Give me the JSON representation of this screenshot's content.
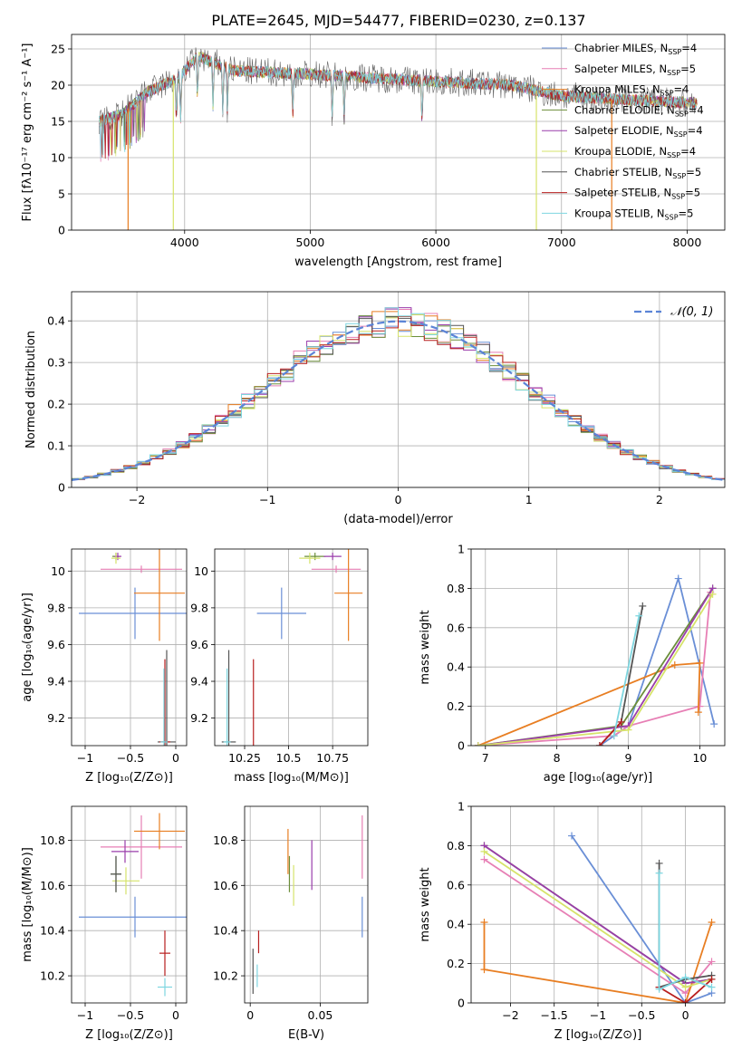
{
  "figure": {
    "title": "PLATE=2645, MJD=54477, FIBERID=0230, z=0.137",
    "legend_entries": [
      {
        "label": "Chabrier MILES, N",
        "sub": "SSP",
        "tail": "=4",
        "color": "#6a8fd6"
      },
      {
        "label": "Salpeter MILES, N",
        "sub": "SSP",
        "tail": "=5",
        "color": "#e77fb5"
      },
      {
        "label": "Kroupa MILES, N",
        "sub": "SSP",
        "tail": "=4",
        "color": "#e87e22"
      },
      {
        "label": "Chabrier ELODIE, N",
        "sub": "SSP",
        "tail": "=4",
        "color": "#6b8e3a"
      },
      {
        "label": "Salpeter ELODIE, N",
        "sub": "SSP",
        "tail": "=4",
        "color": "#9a3dab"
      },
      {
        "label": "Kroupa ELODIE, N",
        "sub": "SSP",
        "tail": "=4",
        "color": "#d6e36a"
      },
      {
        "label": "Chabrier STELIB, N",
        "sub": "SSP",
        "tail": "=5",
        "color": "#555555"
      },
      {
        "label": "Salpeter STELIB, N",
        "sub": "SSP",
        "tail": "=5",
        "color": "#b81f1f"
      },
      {
        "label": "Kroupa STELIB, N",
        "sub": "SSP",
        "tail": "=5",
        "color": "#7dd6e0"
      }
    ],
    "normal_legend": "𝒩(0, 1)"
  },
  "chart_data": [
    {
      "id": "spectrum",
      "type": "line",
      "xlabel": "wavelength [Angstrom, rest frame]",
      "ylabel": "Flux [fλ10⁻¹⁷ erg cm⁻² s⁻¹ A⁻¹]",
      "xlim": [
        3100,
        8300
      ],
      "ylim": [
        0,
        27
      ],
      "xticks": [
        4000,
        5000,
        6000,
        7000,
        8000
      ],
      "yticks": [
        0,
        5,
        10,
        15,
        20,
        25
      ],
      "x_range": [
        3320,
        8080
      ],
      "continuum": {
        "x": [
          3320,
          3500,
          3700,
          3950,
          4100,
          4400,
          5000,
          6000,
          6600,
          7000,
          7500,
          8080
        ],
        "y": [
          15,
          16,
          19,
          21,
          24,
          22,
          21.5,
          20.5,
          20,
          18.5,
          18,
          17.5
        ]
      },
      "dips": [
        {
          "x": 3550,
          "to": 0,
          "series": "Kroupa MILES"
        },
        {
          "x": 3910,
          "to": 0,
          "series": "Kroupa ELODIE"
        },
        {
          "x": 6800,
          "to": 0,
          "series": "Kroupa ELODIE"
        },
        {
          "x": 7400,
          "to": 0,
          "series": "Kroupa MILES"
        }
      ]
    },
    {
      "id": "residuals",
      "type": "step",
      "xlabel": "(data-model)/error",
      "ylabel": "Normed distribution",
      "xlim": [
        -2.5,
        2.5
      ],
      "ylim": [
        0,
        0.47
      ],
      "xticks": [
        -2,
        -1,
        0,
        1,
        2
      ],
      "yticks": [
        0.0,
        0.1,
        0.2,
        0.3,
        0.4
      ],
      "bin_width": 0.1,
      "normal": {
        "mu": 0,
        "sigma": 1
      }
    },
    {
      "id": "age_vs_Z",
      "type": "errorbar",
      "xlabel": "Z [log₁₀(Z/Z⊙)]",
      "ylabel": "age  [log₁₀(age/yr)]",
      "xlim": [
        -1.15,
        0.12
      ],
      "ylim": [
        9.05,
        10.12
      ],
      "xticks": [
        -1.0,
        -0.5,
        0.0
      ],
      "yticks": [
        9.2,
        9.4,
        9.6,
        9.8,
        10.0
      ],
      "points": [
        {
          "x": -0.45,
          "xe": 0.62,
          "y": 9.77,
          "ye": 0.14,
          "c": "#6a8fd6"
        },
        {
          "x": -0.38,
          "xe": 0.45,
          "y": 10.01,
          "ye": 0.0,
          "c": "#e77fb5"
        },
        {
          "x": -0.18,
          "xe": 0.28,
          "y": 9.88,
          "ye": 0.26,
          "c": "#e87e22"
        },
        {
          "x": -0.66,
          "xe": 0.04,
          "y": 10.08,
          "ye": 0.02,
          "c": "#6b8e3a"
        },
        {
          "x": -0.64,
          "xe": 0.04,
          "y": 10.08,
          "ye": 0.02,
          "c": "#9a3dab"
        },
        {
          "x": -0.66,
          "xe": 0.05,
          "y": 10.07,
          "ye": 0.03,
          "c": "#d6e36a"
        },
        {
          "x": -0.1,
          "xe": 0.1,
          "y": 9.07,
          "ye": 0.5,
          "c": "#555555"
        },
        {
          "x": -0.12,
          "xe": 0.06,
          "y": 9.07,
          "ye": 0.45,
          "c": "#b81f1f"
        },
        {
          "x": -0.13,
          "xe": 0.04,
          "y": 9.07,
          "ye": 0.4,
          "c": "#7dd6e0"
        }
      ]
    },
    {
      "id": "age_vs_mass",
      "type": "errorbar",
      "xlabel": "mass [log₁₀(M/M⊙)]",
      "ylabel": "",
      "xlim": [
        10.08,
        10.95
      ],
      "ylim": [
        9.05,
        10.12
      ],
      "xticks": [
        10.25,
        10.5,
        10.75
      ],
      "yticks": [
        9.2,
        9.4,
        9.6,
        9.8,
        10.0
      ],
      "points": [
        {
          "x": 10.46,
          "xe": 0.14,
          "y": 9.77,
          "ye": 0.14,
          "c": "#6a8fd6"
        },
        {
          "x": 10.77,
          "xe": 0.14,
          "y": 10.01,
          "ye": 0.0,
          "c": "#e77fb5"
        },
        {
          "x": 10.84,
          "xe": 0.08,
          "y": 9.88,
          "ye": 0.26,
          "c": "#e87e22"
        },
        {
          "x": 10.65,
          "xe": 0.06,
          "y": 10.08,
          "ye": 0.02,
          "c": "#6b8e3a"
        },
        {
          "x": 10.75,
          "xe": 0.05,
          "y": 10.08,
          "ye": 0.02,
          "c": "#9a3dab"
        },
        {
          "x": 10.62,
          "xe": 0.06,
          "y": 10.07,
          "ye": 0.03,
          "c": "#d6e36a"
        },
        {
          "x": 10.16,
          "xe": 0.04,
          "y": 9.07,
          "ye": 0.5,
          "c": "#555555"
        },
        {
          "x": 10.3,
          "xe": 0.0,
          "y": 9.07,
          "ye": 0.45,
          "c": "#b81f1f"
        },
        {
          "x": 10.15,
          "xe": 0.02,
          "y": 9.07,
          "ye": 0.4,
          "c": "#7dd6e0"
        }
      ]
    },
    {
      "id": "weight_vs_age",
      "type": "line",
      "xlabel": "age  [log₁₀(age/yr)]",
      "ylabel": "mass weight",
      "xlim": [
        6.8,
        10.35
      ],
      "ylim": [
        0,
        1.0
      ],
      "xticks": [
        7,
        8,
        9,
        10
      ],
      "yticks": [
        0.0,
        0.2,
        0.4,
        0.6,
        0.8,
        1.0
      ],
      "series": [
        {
          "c": "#6a8fd6",
          "x": [
            8.6,
            9.0,
            9.7,
            10.2
          ],
          "y": [
            0.0,
            0.1,
            0.85,
            0.11
          ]
        },
        {
          "c": "#e77fb5",
          "x": [
            6.9,
            8.8,
            9.0,
            10.0,
            10.15
          ],
          "y": [
            0.0,
            0.05,
            0.1,
            0.2,
            0.78
          ]
        },
        {
          "c": "#e87e22",
          "x": [
            6.9,
            9.65,
            10.0,
            9.98
          ],
          "y": [
            0.0,
            0.41,
            0.42,
            0.17
          ]
        },
        {
          "c": "#6b8e3a",
          "x": [
            6.9,
            8.9,
            10.18
          ],
          "y": [
            0.0,
            0.1,
            0.8
          ]
        },
        {
          "c": "#9a3dab",
          "x": [
            6.9,
            9.0,
            10.18
          ],
          "y": [
            0.0,
            0.1,
            0.8
          ]
        },
        {
          "c": "#d6e36a",
          "x": [
            6.9,
            9.0,
            10.18
          ],
          "y": [
            0.0,
            0.08,
            0.77
          ]
        },
        {
          "c": "#555555",
          "x": [
            8.6,
            8.9,
            9.2
          ],
          "y": [
            0.0,
            0.12,
            0.71
          ]
        },
        {
          "c": "#b81f1f",
          "x": [
            8.6,
            8.9
          ],
          "y": [
            0.0,
            0.12
          ]
        },
        {
          "c": "#7dd6e0",
          "x": [
            8.8,
            9.15
          ],
          "y": [
            0.05,
            0.66
          ]
        }
      ]
    },
    {
      "id": "mass_vs_Z",
      "type": "errorbar",
      "xlabel": "Z [log₁₀(Z/Z⊙)]",
      "ylabel": "mass [log₁₀(M/M⊙)]",
      "xlim": [
        -1.15,
        0.12
      ],
      "ylim": [
        10.08,
        10.95
      ],
      "xticks": [
        -1.0,
        -0.5,
        0.0
      ],
      "yticks": [
        10.2,
        10.4,
        10.6,
        10.8
      ],
      "points": [
        {
          "x": -0.45,
          "xe": 0.62,
          "y": 10.46,
          "ye": 0.09,
          "c": "#6a8fd6"
        },
        {
          "x": -0.38,
          "xe": 0.45,
          "y": 10.77,
          "ye": 0.14,
          "c": "#e77fb5"
        },
        {
          "x": -0.18,
          "xe": 0.28,
          "y": 10.84,
          "ye": 0.08,
          "c": "#e87e22"
        },
        {
          "x": -0.66,
          "xe": 0.06,
          "y": 10.65,
          "ye": 0.08,
          "c": "#6b8e3a"
        },
        {
          "x": -0.56,
          "xe": 0.15,
          "y": 10.75,
          "ye": 0.05,
          "c": "#9a3dab"
        },
        {
          "x": -0.55,
          "xe": 0.15,
          "y": 10.62,
          "ye": 0.06,
          "c": "#d6e36a"
        },
        {
          "x": -0.66,
          "xe": 0.06,
          "y": 10.65,
          "ye": 0.08,
          "c": "#555555"
        },
        {
          "x": -0.12,
          "xe": 0.06,
          "y": 10.3,
          "ye": 0.1,
          "c": "#b81f1f"
        },
        {
          "x": -0.12,
          "xe": 0.08,
          "y": 10.15,
          "ye": 0.04,
          "c": "#7dd6e0"
        }
      ]
    },
    {
      "id": "mass_vs_EBV",
      "type": "errorbar",
      "xlabel": "E(B-V)",
      "ylabel": "",
      "xlim": [
        -0.004,
        0.084
      ],
      "ylim": [
        10.08,
        10.95
      ],
      "xticks": [
        0.0,
        0.05
      ],
      "yticks": [
        10.2,
        10.4,
        10.6,
        10.8
      ],
      "points": [
        {
          "x": 0.08,
          "xe": 0,
          "y": 10.46,
          "ye": 0.09,
          "c": "#6a8fd6"
        },
        {
          "x": 0.08,
          "xe": 0,
          "y": 10.77,
          "ye": 0.14,
          "c": "#e77fb5"
        },
        {
          "x": 0.027,
          "xe": 0,
          "y": 10.75,
          "ye": 0.1,
          "c": "#e87e22"
        },
        {
          "x": 0.028,
          "xe": 0,
          "y": 10.65,
          "ye": 0.08,
          "c": "#6b8e3a"
        },
        {
          "x": 0.044,
          "xe": 0,
          "y": 10.69,
          "ye": 0.11,
          "c": "#9a3dab"
        },
        {
          "x": 0.031,
          "xe": 0,
          "y": 10.6,
          "ye": 0.09,
          "c": "#d6e36a"
        },
        {
          "x": 0.002,
          "xe": 0,
          "y": 10.22,
          "ye": 0.1,
          "c": "#555555"
        },
        {
          "x": 0.006,
          "xe": 0,
          "y": 10.35,
          "ye": 0.05,
          "c": "#b81f1f"
        },
        {
          "x": 0.005,
          "xe": 0,
          "y": 10.2,
          "ye": 0.05,
          "c": "#7dd6e0"
        }
      ]
    },
    {
      "id": "weight_vs_Z",
      "type": "line",
      "xlabel": "Z [log₁₀(Z/Z⊙)]",
      "ylabel": "mass weight",
      "xlim": [
        -2.45,
        0.45
      ],
      "ylim": [
        0,
        1.0
      ],
      "xticks": [
        -2.0,
        -1.5,
        -1.0,
        -0.5,
        0.0
      ],
      "yticks": [
        0.0,
        0.2,
        0.4,
        0.6,
        0.8,
        1.0
      ],
      "series": [
        {
          "c": "#6a8fd6",
          "x": [
            -1.3,
            0.0,
            0.3
          ],
          "y": [
            0.85,
            0.0,
            0.05
          ]
        },
        {
          "c": "#e77fb5",
          "x": [
            -2.3,
            0.0,
            0.3
          ],
          "y": [
            0.73,
            0.05,
            0.21
          ]
        },
        {
          "c": "#e87e22",
          "x": [
            -2.3,
            -2.3,
            0.0,
            0.3
          ],
          "y": [
            0.41,
            0.17,
            0.0,
            0.41
          ]
        },
        {
          "c": "#6b8e3a",
          "x": [
            -2.3,
            0.0,
            0.3
          ],
          "y": [
            0.8,
            0.1,
            0.12
          ]
        },
        {
          "c": "#9a3dab",
          "x": [
            -2.3,
            0.0,
            0.3
          ],
          "y": [
            0.8,
            0.1,
            0.12
          ]
        },
        {
          "c": "#d6e36a",
          "x": [
            -2.3,
            0.0,
            0.3
          ],
          "y": [
            0.77,
            0.08,
            0.12
          ]
        },
        {
          "c": "#555555",
          "x": [
            -0.3,
            -0.3,
            0.0,
            0.3
          ],
          "y": [
            0.71,
            0.08,
            0.12,
            0.14
          ]
        },
        {
          "c": "#b81f1f",
          "x": [
            -0.3,
            0.0,
            0.3
          ],
          "y": [
            0.08,
            0.0,
            0.12
          ]
        },
        {
          "c": "#7dd6e0",
          "x": [
            -0.3,
            -0.3,
            0.0,
            0.3
          ],
          "y": [
            0.66,
            0.07,
            0.13,
            0.08
          ]
        }
      ]
    }
  ]
}
